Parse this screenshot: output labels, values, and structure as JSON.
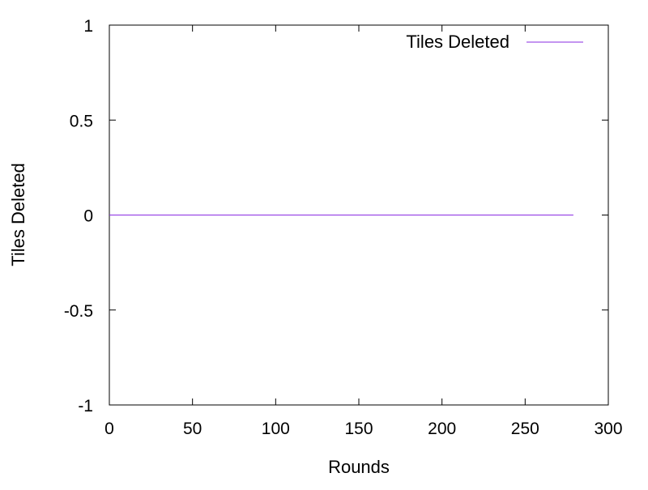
{
  "chart_data": {
    "type": "line",
    "title": "",
    "xlabel": "Rounds",
    "ylabel": "Tiles Deleted",
    "xlim": [
      0,
      300
    ],
    "ylim": [
      -1,
      1
    ],
    "xticks": [
      0,
      50,
      100,
      150,
      200,
      250,
      300
    ],
    "xtick_labels": [
      "0",
      "50",
      "100",
      "150",
      "200",
      "250",
      "300"
    ],
    "yticks": [
      -1,
      -0.5,
      0,
      0.5,
      1
    ],
    "ytick_labels": [
      "-1",
      "-0.5",
      "0",
      "0.5",
      "1"
    ],
    "grid": false,
    "legend": {
      "position": "top-right"
    },
    "series": [
      {
        "name": "Tiles Deleted",
        "color": "#8a2be2",
        "x": [
          0,
          279
        ],
        "y": [
          0,
          0
        ]
      }
    ]
  }
}
